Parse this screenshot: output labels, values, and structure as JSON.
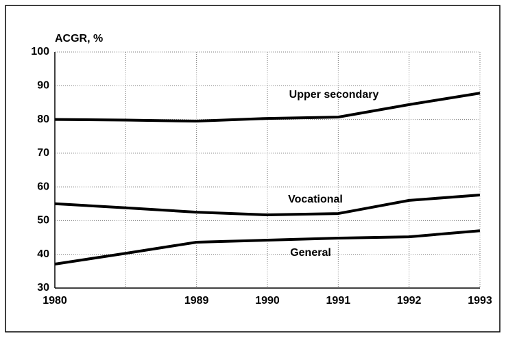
{
  "chart_data": {
    "type": "line",
    "y_label": "ACGR, %",
    "categories": [
      "1980",
      null,
      "1989",
      "1990",
      "1991",
      "1992",
      "1993"
    ],
    "series": [
      {
        "name": "Upper secondary",
        "color": "#000000",
        "values": [
          80,
          79.8,
          79.5,
          80.3,
          80.7,
          84.4,
          87.8
        ]
      },
      {
        "name": "Vocational",
        "color": "#000000",
        "values": [
          55,
          53.8,
          52.5,
          51.7,
          52.1,
          56,
          57.6
        ]
      },
      {
        "name": "General",
        "color": "#000000",
        "values": [
          37.1,
          40.3,
          43.6,
          44.2,
          44.8,
          45.2,
          47
        ]
      }
    ],
    "ylim": [
      30,
      100
    ],
    "yticks": [
      30,
      40,
      50,
      60,
      70,
      80,
      90,
      100
    ],
    "grid": true
  }
}
